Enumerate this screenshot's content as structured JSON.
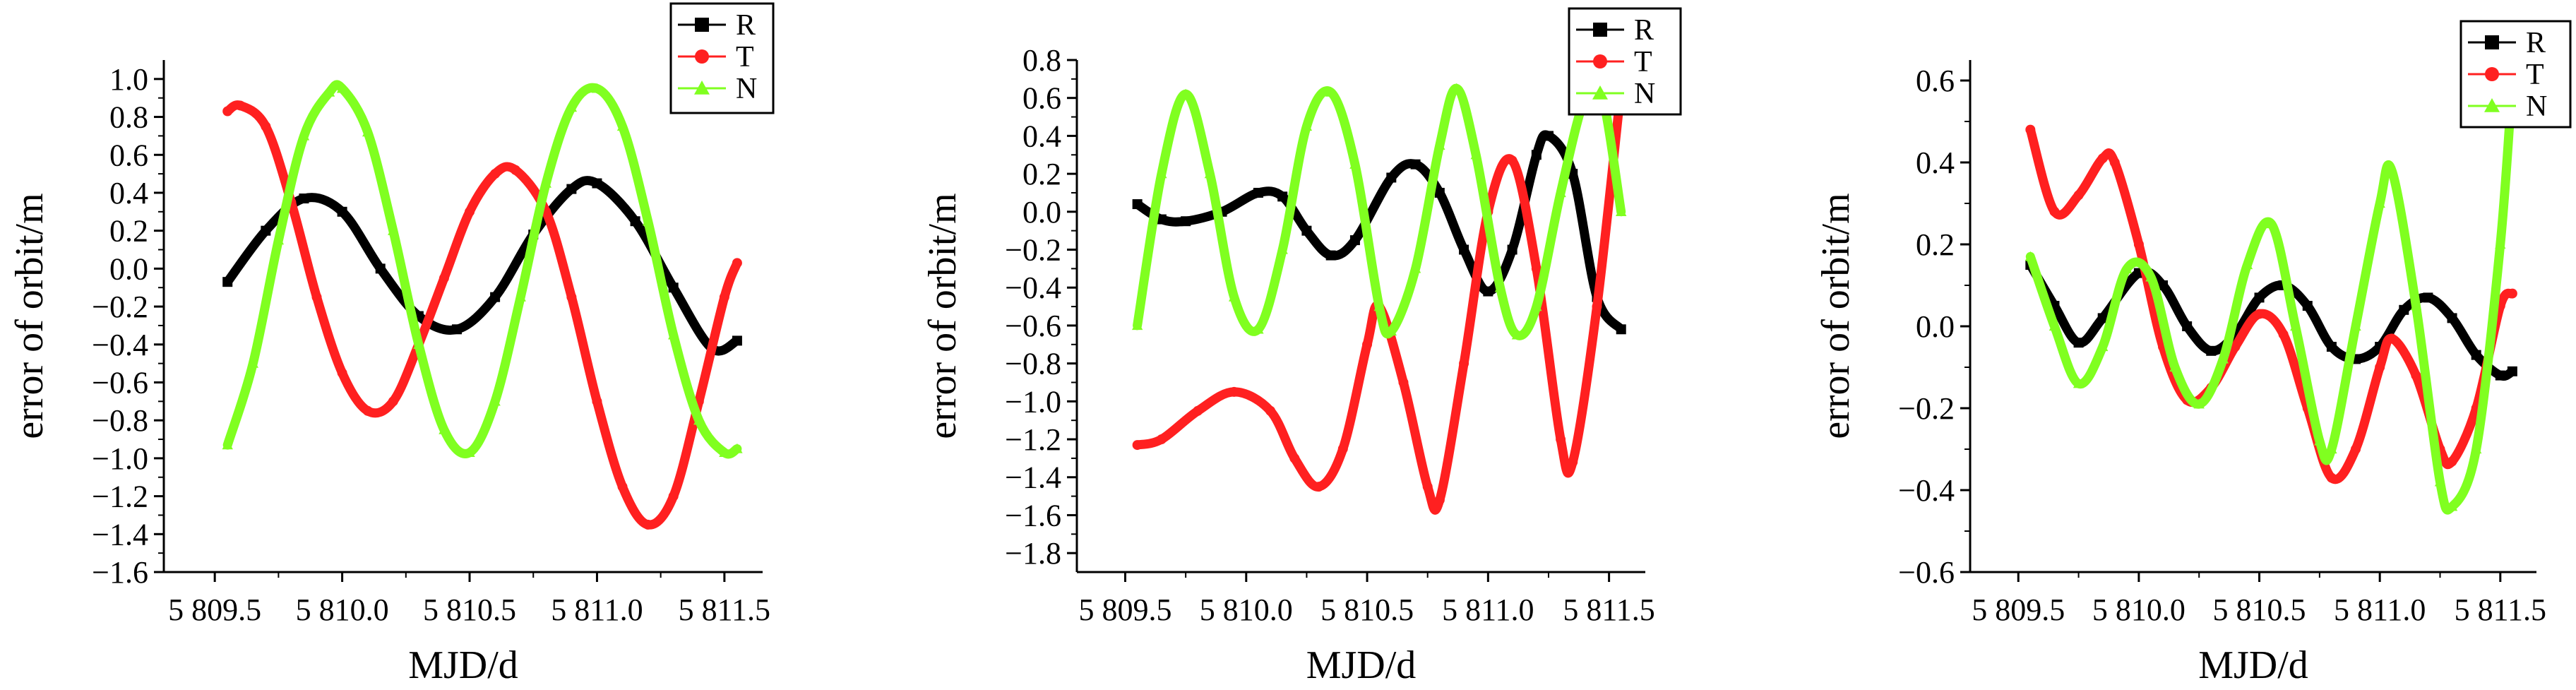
{
  "colors": {
    "R": "#000000",
    "T": "#ff2020",
    "N": "#80ff20"
  },
  "chart_data": [
    {
      "type": "line",
      "xlabel": "MJD/d",
      "ylabel": "error of orbit/m",
      "xlim": [
        5809.3,
        5811.65
      ],
      "ylim": [
        -1.6,
        1.1
      ],
      "xticks": [
        5809.5,
        5810.0,
        5810.5,
        5811.0,
        5811.5
      ],
      "xtick_labels": [
        "5 809.5",
        "5 810.0",
        "5 810.5",
        "5 811.0",
        "5 811.5"
      ],
      "yticks": [
        -1.6,
        -1.4,
        -1.2,
        -1.0,
        -0.8,
        -0.6,
        -0.4,
        -0.2,
        0.0,
        0.2,
        0.4,
        0.6,
        0.8,
        1.0
      ],
      "ytick_labels": [
        "−1.6",
        "−1.4",
        "−1.2",
        "−1.0",
        "−0.8",
        "−0.6",
        "−0.4",
        "−0.2",
        "0.0",
        "0.2",
        "0.4",
        "0.6",
        "0.8",
        "1.0"
      ],
      "legend": {
        "position": "top-right",
        "entries": [
          "R",
          "T",
          "N"
        ]
      },
      "series": [
        {
          "name": "R",
          "x": [
            5809.55,
            5809.7,
            5809.85,
            5810.0,
            5810.15,
            5810.3,
            5810.45,
            5810.6,
            5810.75,
            5810.9,
            5811.0,
            5811.15,
            5811.3,
            5811.45,
            5811.55
          ],
          "y": [
            -0.07,
            0.2,
            0.37,
            0.3,
            0.0,
            -0.25,
            -0.32,
            -0.15,
            0.18,
            0.42,
            0.45,
            0.25,
            -0.1,
            -0.42,
            -0.38
          ]
        },
        {
          "name": "T",
          "x": [
            5809.55,
            5809.6,
            5809.7,
            5809.8,
            5809.9,
            5810.0,
            5810.1,
            5810.2,
            5810.3,
            5810.4,
            5810.5,
            5810.6,
            5810.68,
            5810.8,
            5810.9,
            5811.0,
            5811.1,
            5811.2,
            5811.3,
            5811.4,
            5811.5,
            5811.55
          ],
          "y": [
            0.83,
            0.86,
            0.75,
            0.35,
            -0.15,
            -0.55,
            -0.75,
            -0.7,
            -0.4,
            -0.05,
            0.3,
            0.5,
            0.52,
            0.3,
            -0.15,
            -0.7,
            -1.15,
            -1.35,
            -1.2,
            -0.7,
            -0.15,
            0.03
          ]
        },
        {
          "name": "N",
          "x": [
            5809.55,
            5809.65,
            5809.75,
            5809.85,
            5809.95,
            5810.0,
            5810.1,
            5810.2,
            5810.3,
            5810.4,
            5810.5,
            5810.6,
            5810.7,
            5810.8,
            5810.9,
            5811.0,
            5811.1,
            5811.2,
            5811.3,
            5811.4,
            5811.5,
            5811.55
          ],
          "y": [
            -0.93,
            -0.5,
            0.15,
            0.7,
            0.93,
            0.95,
            0.72,
            0.2,
            -0.4,
            -0.85,
            -0.97,
            -0.7,
            -0.15,
            0.45,
            0.85,
            0.95,
            0.75,
            0.25,
            -0.35,
            -0.8,
            -0.97,
            -0.95
          ]
        }
      ]
    },
    {
      "type": "line",
      "xlabel": "MJD/d",
      "ylabel": "error of orbit/m",
      "xlim": [
        5809.3,
        5811.65
      ],
      "ylim": [
        -1.9,
        0.8
      ],
      "xticks": [
        5809.5,
        5810.0,
        5810.5,
        5811.0,
        5811.5
      ],
      "xtick_labels": [
        "5 809.5",
        "5 810.0",
        "5 810.5",
        "5 811.0",
        "5 811.5"
      ],
      "yticks": [
        -1.8,
        -1.6,
        -1.4,
        -1.2,
        -1.0,
        -0.8,
        -0.6,
        -0.4,
        -0.2,
        0.0,
        0.2,
        0.4,
        0.6,
        0.8
      ],
      "ytick_labels": [
        "−1.8",
        "−1.6",
        "−1.4",
        "−1.2",
        "−1.0",
        "−0.8",
        "−0.6",
        "−0.4",
        "−0.2",
        "0.0",
        "0.2",
        "0.4",
        "0.6",
        "0.8"
      ],
      "legend": {
        "position": "top-right",
        "entries": [
          "R",
          "T",
          "N"
        ]
      },
      "series": [
        {
          "name": "R",
          "x": [
            5809.55,
            5809.65,
            5809.75,
            5809.9,
            5810.05,
            5810.15,
            5810.25,
            5810.35,
            5810.45,
            5810.6,
            5810.7,
            5810.8,
            5810.9,
            5811.0,
            5811.1,
            5811.2,
            5811.25,
            5811.35,
            5811.45,
            5811.55
          ],
          "y": [
            0.04,
            -0.04,
            -0.05,
            0.0,
            0.1,
            0.08,
            -0.1,
            -0.23,
            -0.15,
            0.18,
            0.25,
            0.1,
            -0.2,
            -0.42,
            -0.2,
            0.3,
            0.4,
            0.2,
            -0.45,
            -0.62
          ]
        },
        {
          "name": "T",
          "x": [
            5809.55,
            5809.65,
            5809.8,
            5809.95,
            5810.1,
            5810.2,
            5810.3,
            5810.4,
            5810.5,
            5810.55,
            5810.65,
            5810.75,
            5810.8,
            5810.9,
            5811.0,
            5811.1,
            5811.2,
            5811.3,
            5811.35,
            5811.45,
            5811.55
          ],
          "y": [
            -1.23,
            -1.2,
            -1.05,
            -0.95,
            -1.05,
            -1.3,
            -1.45,
            -1.25,
            -0.7,
            -0.5,
            -0.9,
            -1.45,
            -1.52,
            -0.8,
            0.0,
            0.27,
            -0.3,
            -1.2,
            -1.32,
            -0.5,
            0.65
          ]
        },
        {
          "name": "N",
          "x": [
            5809.55,
            5809.65,
            5809.75,
            5809.85,
            5809.95,
            5810.05,
            5810.15,
            5810.25,
            5810.35,
            5810.45,
            5810.55,
            5810.6,
            5810.7,
            5810.8,
            5810.87,
            5810.95,
            5811.05,
            5811.12,
            5811.2,
            5811.3,
            5811.4,
            5811.47,
            5811.55
          ],
          "y": [
            -0.6,
            0.2,
            0.62,
            0.2,
            -0.45,
            -0.62,
            -0.2,
            0.45,
            0.63,
            0.25,
            -0.5,
            -0.63,
            -0.3,
            0.35,
            0.65,
            0.3,
            -0.4,
            -0.65,
            -0.5,
            0.1,
            0.6,
            0.62,
            0.0
          ]
        }
      ]
    },
    {
      "type": "line",
      "xlabel": "MJD/d",
      "ylabel": "error of orbit/m",
      "xlim": [
        5809.3,
        5811.65
      ],
      "ylim": [
        -0.6,
        0.65
      ],
      "xticks": [
        5809.5,
        5810.0,
        5810.5,
        5811.0,
        5811.5
      ],
      "xtick_labels": [
        "5 809.5",
        "5 810.0",
        "5 810.5",
        "5 811.0",
        "5 811.5"
      ],
      "yticks": [
        -0.6,
        -0.4,
        -0.2,
        0.0,
        0.2,
        0.4,
        0.6
      ],
      "ytick_labels": [
        "−0.6",
        "−0.4",
        "−0.2",
        "0.0",
        "0.2",
        "0.4",
        "0.6"
      ],
      "legend": {
        "position": "top-right",
        "entries": [
          "R",
          "T",
          "N"
        ]
      },
      "series": [
        {
          "name": "R",
          "x": [
            5809.55,
            5809.65,
            5809.75,
            5809.85,
            5810.0,
            5810.1,
            5810.2,
            5810.3,
            5810.4,
            5810.5,
            5810.6,
            5810.7,
            5810.8,
            5810.9,
            5811.0,
            5811.1,
            5811.2,
            5811.3,
            5811.4,
            5811.5,
            5811.55
          ],
          "y": [
            0.15,
            0.05,
            -0.04,
            0.02,
            0.13,
            0.1,
            0.0,
            -0.06,
            -0.02,
            0.07,
            0.1,
            0.05,
            -0.05,
            -0.08,
            -0.05,
            0.04,
            0.07,
            0.02,
            -0.07,
            -0.12,
            -0.11
          ]
        },
        {
          "name": "T",
          "x": [
            5809.55,
            5809.65,
            5809.75,
            5809.85,
            5809.9,
            5810.0,
            5810.1,
            5810.2,
            5810.3,
            5810.4,
            5810.5,
            5810.6,
            5810.7,
            5810.8,
            5810.9,
            5811.0,
            5811.05,
            5811.15,
            5811.25,
            5811.3,
            5811.4,
            5811.5,
            5811.55
          ],
          "y": [
            0.48,
            0.28,
            0.32,
            0.41,
            0.4,
            0.2,
            -0.05,
            -0.18,
            -0.15,
            -0.05,
            0.03,
            -0.02,
            -0.2,
            -0.37,
            -0.3,
            -0.1,
            -0.03,
            -0.12,
            -0.3,
            -0.33,
            -0.2,
            0.05,
            0.08
          ]
        },
        {
          "name": "N",
          "x": [
            5809.55,
            5809.65,
            5809.75,
            5809.85,
            5809.95,
            5810.05,
            5810.15,
            5810.25,
            5810.35,
            5810.45,
            5810.55,
            5810.65,
            5810.75,
            5810.8,
            5810.9,
            5811.0,
            5811.05,
            5811.15,
            5811.25,
            5811.3,
            5811.4,
            5811.5,
            5811.55
          ],
          "y": [
            0.17,
            0.0,
            -0.14,
            -0.05,
            0.14,
            0.12,
            -0.1,
            -0.19,
            -0.08,
            0.15,
            0.25,
            0.0,
            -0.28,
            -0.3,
            0.0,
            0.3,
            0.38,
            0.05,
            -0.38,
            -0.44,
            -0.3,
            0.2,
            0.6
          ]
        }
      ]
    }
  ]
}
